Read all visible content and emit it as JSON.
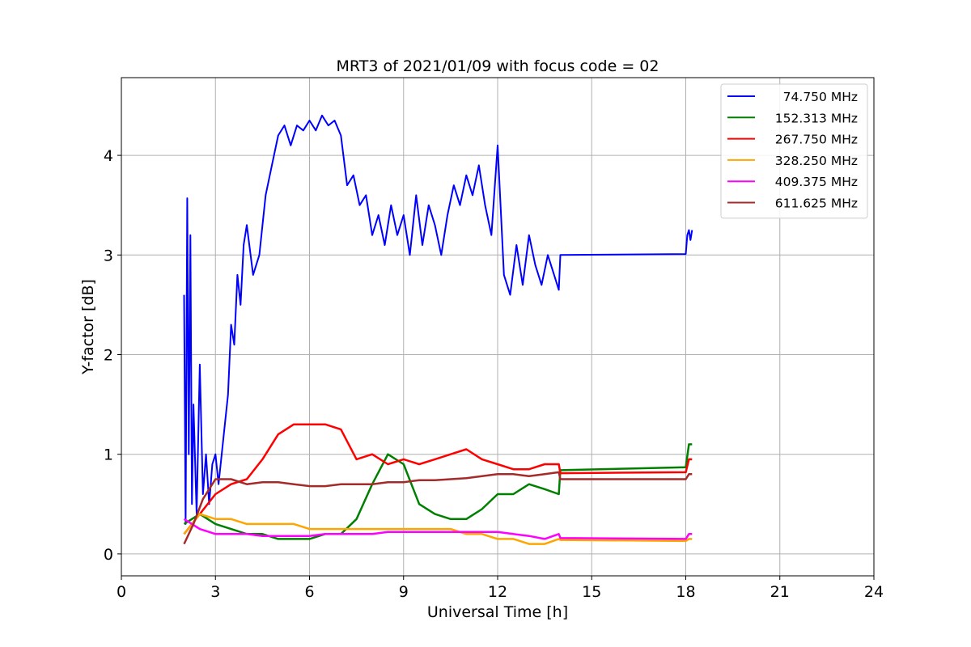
{
  "chart_data": {
    "type": "line",
    "title": "MRT3 of 2021/01/09 with focus code = 02",
    "xlabel": "Universal Time [h]",
    "ylabel": "Y-factor [dB]",
    "xlim": [
      0,
      24
    ],
    "ylim": [
      -0.22,
      4.78
    ],
    "xticks": [
      "0",
      "3",
      "6",
      "9",
      "12",
      "15",
      "18",
      "21",
      "24"
    ],
    "yticks": [
      "0",
      "1",
      "2",
      "3",
      "4"
    ],
    "grid": true,
    "legend_position": "top-right",
    "series": [
      {
        "name": "74.750 MHz",
        "color": "#0000ff",
        "x": [
          2.0,
          2.05,
          2.1,
          2.15,
          2.2,
          2.25,
          2.3,
          2.4,
          2.5,
          2.6,
          2.7,
          2.8,
          2.9,
          3.0,
          3.1,
          3.2,
          3.3,
          3.4,
          3.5,
          3.6,
          3.7,
          3.8,
          3.9,
          4.0,
          4.2,
          4.4,
          4.6,
          4.8,
          5.0,
          5.2,
          5.4,
          5.6,
          5.8,
          6.0,
          6.2,
          6.4,
          6.6,
          6.8,
          7.0,
          7.2,
          7.4,
          7.6,
          7.8,
          8.0,
          8.2,
          8.4,
          8.6,
          8.8,
          9.0,
          9.2,
          9.4,
          9.6,
          9.8,
          10.0,
          10.2,
          10.4,
          10.6,
          10.8,
          11.0,
          11.2,
          11.4,
          11.6,
          11.8,
          12.0,
          12.2,
          12.4,
          12.6,
          12.8,
          13.0,
          13.2,
          13.4,
          13.6,
          13.8,
          13.95,
          14.0,
          18.0,
          18.05,
          18.1,
          18.15,
          18.2
        ],
        "y": [
          2.6,
          0.3,
          3.57,
          1.0,
          3.2,
          0.5,
          1.5,
          0.4,
          1.9,
          0.6,
          1.0,
          0.5,
          0.9,
          1.0,
          0.7,
          1.0,
          1.3,
          1.6,
          2.3,
          2.1,
          2.8,
          2.5,
          3.1,
          3.3,
          2.8,
          3.0,
          3.6,
          3.9,
          4.2,
          4.3,
          4.1,
          4.3,
          4.25,
          4.35,
          4.25,
          4.4,
          4.3,
          4.35,
          4.2,
          3.7,
          3.8,
          3.5,
          3.6,
          3.2,
          3.4,
          3.1,
          3.5,
          3.2,
          3.4,
          3.0,
          3.6,
          3.1,
          3.5,
          3.3,
          3.0,
          3.4,
          3.7,
          3.5,
          3.8,
          3.6,
          3.9,
          3.5,
          3.2,
          4.1,
          2.8,
          2.6,
          3.1,
          2.7,
          3.2,
          2.9,
          2.7,
          3.0,
          2.8,
          2.65,
          3.0,
          3.01,
          3.2,
          3.25,
          3.15,
          3.25
        ]
      },
      {
        "name": "152.313 MHz",
        "color": "#008000",
        "x": [
          2.0,
          2.5,
          3.0,
          3.5,
          4.0,
          4.5,
          5.0,
          5.5,
          6.0,
          6.5,
          7.0,
          7.5,
          8.0,
          8.5,
          9.0,
          9.5,
          10.0,
          10.5,
          11.0,
          11.5,
          12.0,
          12.5,
          13.0,
          13.5,
          13.95,
          14.0,
          18.0,
          18.1,
          18.2
        ],
        "y": [
          0.3,
          0.4,
          0.3,
          0.25,
          0.2,
          0.2,
          0.15,
          0.15,
          0.15,
          0.2,
          0.2,
          0.35,
          0.7,
          1.0,
          0.9,
          0.5,
          0.4,
          0.35,
          0.35,
          0.45,
          0.6,
          0.6,
          0.7,
          0.65,
          0.6,
          0.84,
          0.87,
          1.1,
          1.1
        ]
      },
      {
        "name": "267.750 MHz",
        "color": "#ff0000",
        "x": [
          2.0,
          2.5,
          3.0,
          3.5,
          4.0,
          4.5,
          5.0,
          5.5,
          6.0,
          6.5,
          7.0,
          7.5,
          8.0,
          8.5,
          9.0,
          9.5,
          10.0,
          10.5,
          11.0,
          11.5,
          12.0,
          12.5,
          13.0,
          13.5,
          13.95,
          14.0,
          18.0,
          18.1,
          18.2
        ],
        "y": [
          0.2,
          0.4,
          0.6,
          0.7,
          0.75,
          0.95,
          1.2,
          1.3,
          1.3,
          1.3,
          1.25,
          0.95,
          1.0,
          0.9,
          0.95,
          0.9,
          0.95,
          1.0,
          1.05,
          0.95,
          0.9,
          0.85,
          0.85,
          0.9,
          0.9,
          0.81,
          0.82,
          0.95,
          0.95
        ]
      },
      {
        "name": "328.250 MHz",
        "color": "#ffa500",
        "x": [
          2.0,
          2.5,
          3.0,
          3.5,
          4.0,
          4.5,
          5.0,
          5.5,
          6.0,
          6.5,
          7.0,
          7.5,
          8.0,
          8.5,
          9.0,
          9.5,
          10.0,
          10.5,
          11.0,
          11.5,
          12.0,
          12.5,
          13.0,
          13.5,
          13.95,
          14.0,
          18.0,
          18.1,
          18.2
        ],
        "y": [
          0.2,
          0.4,
          0.35,
          0.35,
          0.3,
          0.3,
          0.3,
          0.3,
          0.25,
          0.25,
          0.25,
          0.25,
          0.25,
          0.25,
          0.25,
          0.25,
          0.25,
          0.25,
          0.2,
          0.2,
          0.15,
          0.15,
          0.1,
          0.1,
          0.15,
          0.14,
          0.13,
          0.15,
          0.15
        ]
      },
      {
        "name": "409.375 MHz",
        "color": "#ff00ff",
        "x": [
          2.0,
          2.5,
          3.0,
          3.5,
          4.0,
          4.5,
          5.0,
          5.5,
          6.0,
          6.5,
          7.0,
          7.5,
          8.0,
          8.5,
          9.0,
          9.5,
          10.0,
          10.5,
          11.0,
          11.5,
          12.0,
          12.5,
          13.0,
          13.5,
          13.95,
          14.0,
          18.0,
          18.1,
          18.2
        ],
        "y": [
          0.35,
          0.25,
          0.2,
          0.2,
          0.2,
          0.18,
          0.18,
          0.18,
          0.18,
          0.2,
          0.2,
          0.2,
          0.2,
          0.22,
          0.22,
          0.22,
          0.22,
          0.22,
          0.22,
          0.22,
          0.22,
          0.2,
          0.18,
          0.15,
          0.2,
          0.16,
          0.15,
          0.2,
          0.2
        ]
      },
      {
        "name": "611.625 MHz",
        "color": "#a52a2a",
        "x": [
          2.0,
          2.3,
          2.6,
          3.0,
          3.5,
          4.0,
          4.5,
          5.0,
          5.5,
          6.0,
          6.5,
          7.0,
          7.5,
          8.0,
          8.5,
          9.0,
          9.5,
          10.0,
          10.5,
          11.0,
          11.5,
          12.0,
          12.5,
          13.0,
          13.5,
          13.95,
          14.0,
          18.0,
          18.1,
          18.2
        ],
        "y": [
          0.1,
          0.3,
          0.55,
          0.75,
          0.75,
          0.7,
          0.72,
          0.72,
          0.7,
          0.68,
          0.68,
          0.7,
          0.7,
          0.7,
          0.72,
          0.72,
          0.74,
          0.74,
          0.75,
          0.76,
          0.78,
          0.8,
          0.8,
          0.78,
          0.8,
          0.82,
          0.75,
          0.75,
          0.8,
          0.8
        ]
      }
    ]
  }
}
